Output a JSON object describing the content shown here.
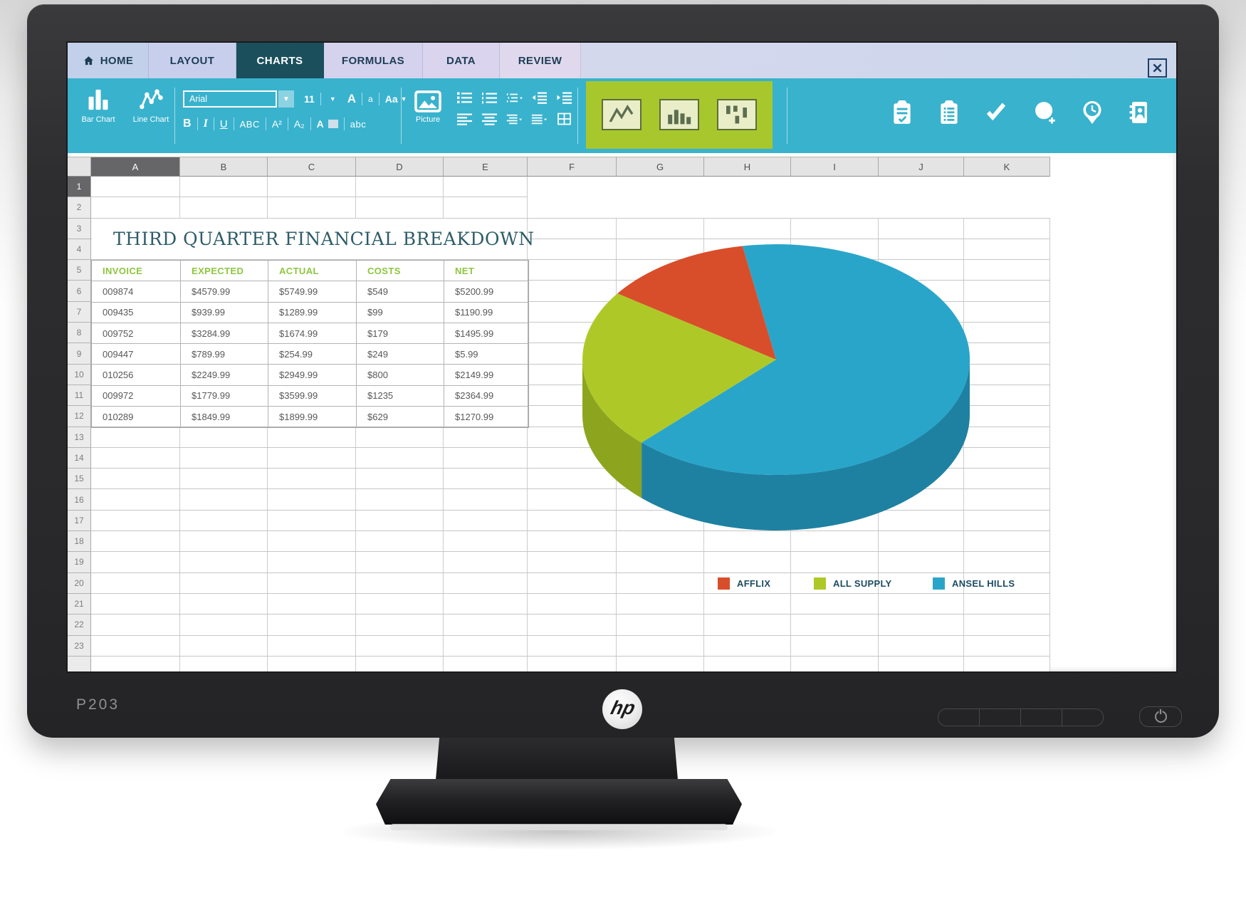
{
  "monitor": {
    "model": "P203",
    "brand": "hp"
  },
  "app": {
    "tabs": [
      {
        "label": "HOME",
        "icon": "home-icon",
        "active": false
      },
      {
        "label": "LAYOUT",
        "active": false
      },
      {
        "label": "CHARTS",
        "active": true
      },
      {
        "label": "FORMULAS",
        "active": false
      },
      {
        "label": "DATA",
        "active": false
      },
      {
        "label": "REVIEW",
        "active": false
      }
    ],
    "toolbar": {
      "insert_buttons": [
        {
          "label": "Bar Chart",
          "icon": "bar-chart-icon"
        },
        {
          "label": "Line Chart",
          "icon": "line-chart-icon"
        }
      ],
      "font_name": "Arial",
      "font_size": "11",
      "format_row1": [
        "A",
        "a",
        "Aa"
      ],
      "format_row2": [
        "B",
        "I",
        "U",
        "ABC",
        "A²",
        "A₂",
        "A",
        "abc"
      ],
      "picture_label": "Picture",
      "list_icons_row1": [
        "bullet-list-icon",
        "numbered-list-icon",
        "outline-list-icon",
        "indent-decrease-icon",
        "indent-increase-icon"
      ],
      "list_icons_row2": [
        "align-left-icon",
        "align-center-icon",
        "align-right-icon",
        "justify-icon",
        "table-grid-icon"
      ],
      "chart_buttons": [
        "line-chart-button",
        "column-chart-button",
        "stock-chart-button"
      ],
      "right_icons": [
        "clipboard-check-icon",
        "clipboard-list-icon",
        "checkmark-icon",
        "target-add-icon",
        "clock-icon",
        "contacts-icon"
      ]
    },
    "sheet": {
      "columns": [
        "A",
        "B",
        "C",
        "D",
        "E",
        "F",
        "G",
        "H",
        "I",
        "J",
        "K"
      ],
      "visible_rows": 23,
      "selected_column": "A",
      "selected_row": "1",
      "title": "THIRD QUARTER FINANCIAL BREAKDOWN",
      "table": {
        "headers": [
          "INVOICE",
          "EXPECTED",
          "ACTUAL",
          "COSTS",
          "NET"
        ],
        "rows": [
          [
            "009874",
            "$4579.99",
            "$5749.99",
            "$549",
            "$5200.99"
          ],
          [
            "009435",
            "$939.99",
            "$1289.99",
            "$99",
            "$1190.99"
          ],
          [
            "009752",
            "$3284.99",
            "$1674.99",
            "$179",
            "$1495.99"
          ],
          [
            "009447",
            "$789.99",
            "$254.99",
            "$249",
            "$5.99"
          ],
          [
            "010256",
            "$2249.99",
            "$2949.99",
            "$800",
            "$2149.99"
          ],
          [
            "009972",
            "$1779.99",
            "$3599.99",
            "$1235",
            "$2364.99"
          ],
          [
            "010289",
            "$1849.99",
            "$1899.99",
            "$629",
            "$1270.99"
          ]
        ]
      }
    }
  },
  "chart_data": {
    "type": "pie",
    "style": "3d",
    "title": "",
    "legend_position": "bottom",
    "start_angle_deg": -100,
    "slices": [
      {
        "label": "AFFLIX",
        "fraction": 0.125,
        "color": "#d84e2a",
        "side_color": "#b03d1f"
      },
      {
        "label": "ALL SUPPLY",
        "fraction": 0.225,
        "color": "#aec927",
        "side_color": "#8da51e"
      },
      {
        "label": "ANSEL HILLS",
        "fraction": 0.65,
        "color": "#2aa5ca",
        "side_color": "#1e81a1"
      }
    ]
  }
}
